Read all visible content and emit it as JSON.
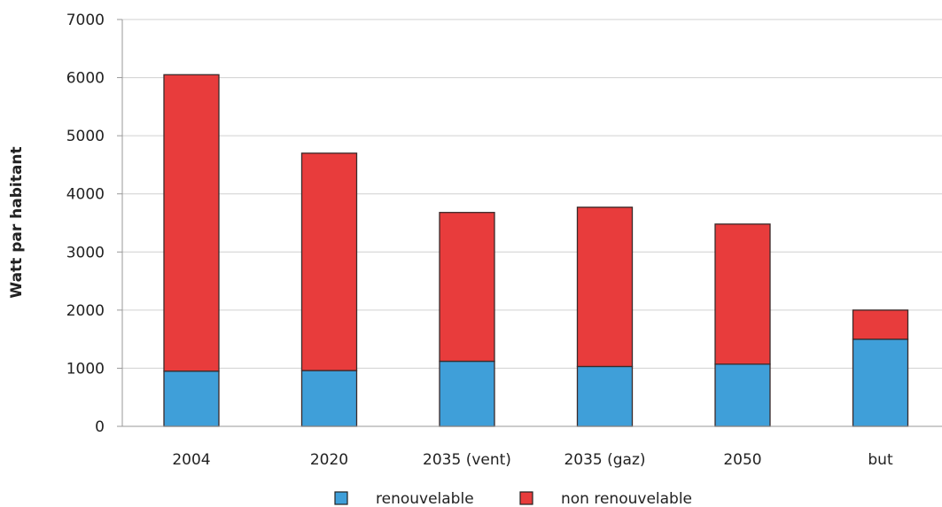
{
  "chart_data": {
    "type": "bar",
    "stacked": true,
    "categories": [
      "2004",
      "2020",
      "2035 (vent)",
      "2035 (gaz)",
      "2050",
      "but"
    ],
    "series": [
      {
        "name": "renouvelable",
        "color": "#3f9fd9",
        "values": [
          950,
          960,
          1120,
          1030,
          1070,
          1500
        ]
      },
      {
        "name": "non renouvelable",
        "color": "#e83c3c",
        "values": [
          5100,
          3740,
          2560,
          2740,
          2410,
          500
        ]
      }
    ],
    "title": "",
    "xlabel": "",
    "ylabel": "Watt par habitant",
    "ylim": [
      0,
      7000
    ],
    "yticks": [
      0,
      1000,
      2000,
      3000,
      4000,
      5000,
      6000,
      7000
    ],
    "grid": true,
    "legend": "bottom"
  }
}
